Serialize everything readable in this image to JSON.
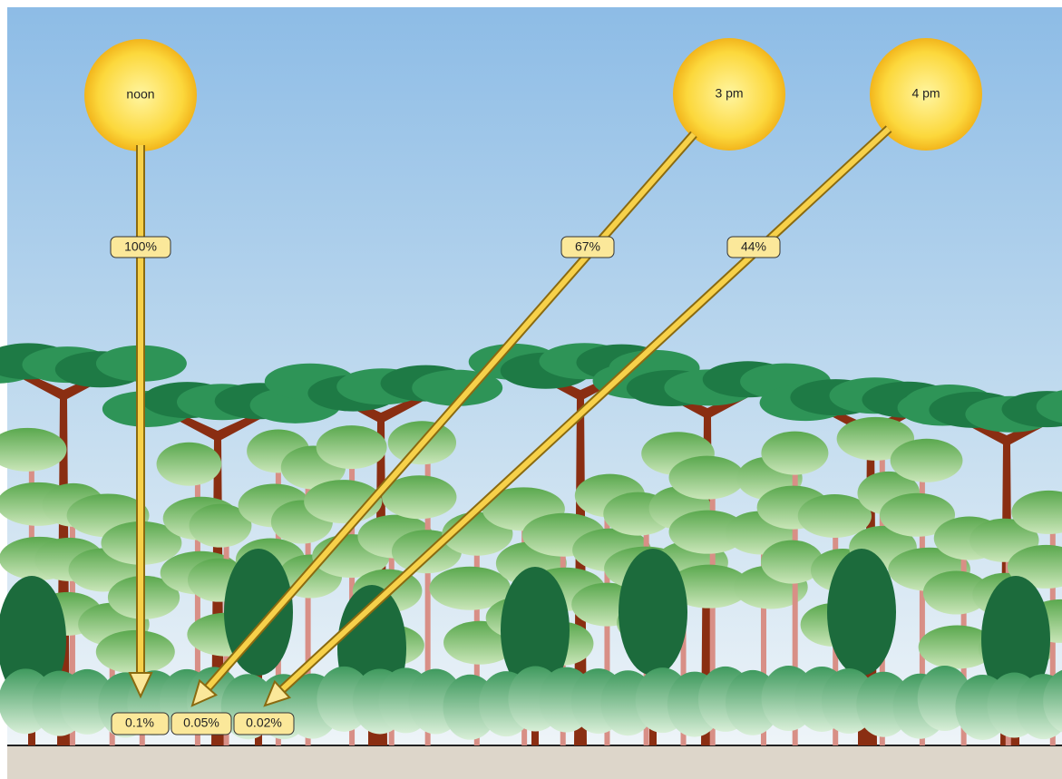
{
  "suns": [
    {
      "label": "noon",
      "canopy_label": "100%",
      "floor_label": "0.1%"
    },
    {
      "label": "3 pm",
      "canopy_label": "67%",
      "floor_label": "0.05%"
    },
    {
      "label": "4 pm",
      "canopy_label": "44%",
      "floor_label": "0.02%"
    }
  ]
}
